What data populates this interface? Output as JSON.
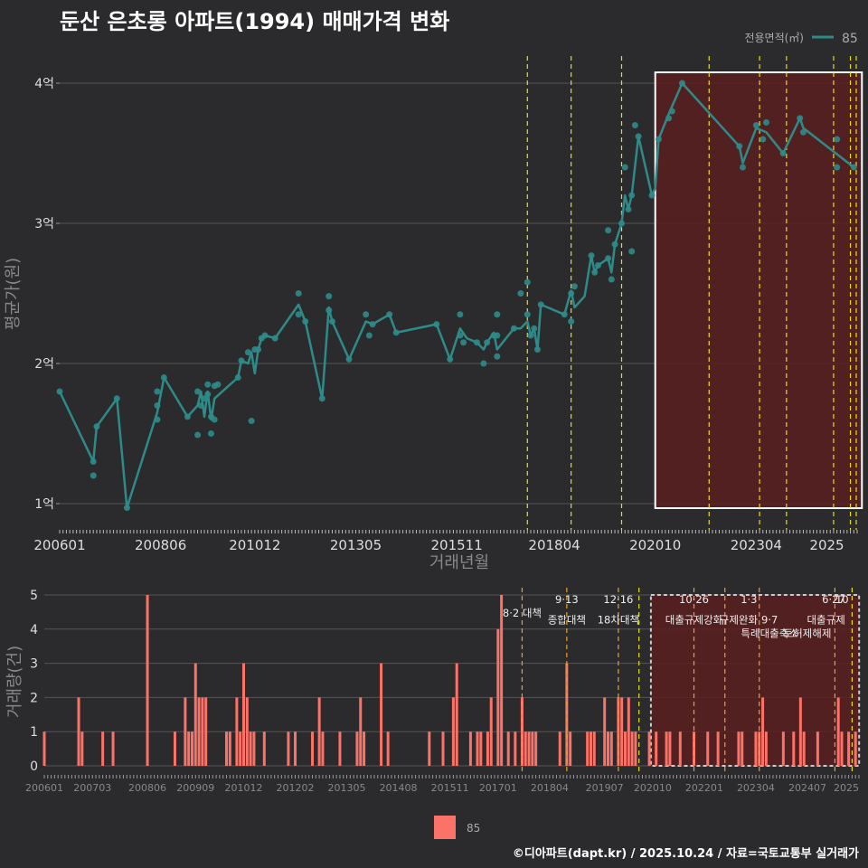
{
  "title": "둔산 은초롱 아파트(1994) 매매가격 변화",
  "footer": "©디아파트(dapt.kr) / 2025.10.24 / 자료=국토교통부 실거래가",
  "colors": {
    "background": "#2b2b2d",
    "line": "#2e8b89",
    "bar": "#fa7268",
    "policy": "#e8e00a",
    "policy_dark": "#e6a12c",
    "highlight_fill": "#5a1e20",
    "grid": "#555555"
  },
  "chart_data": [
    {
      "type": "line",
      "title": "",
      "xlabel": "거래년월",
      "ylabel": "평균가(원)",
      "ylim": [
        0.85,
        4.25
      ],
      "yticks": [
        {
          "v": 1,
          "label": "1억"
        },
        {
          "v": 2,
          "label": "2억"
        },
        {
          "v": 3,
          "label": "3억"
        },
        {
          "v": 4,
          "label": "4억"
        }
      ],
      "xticks": [
        {
          "m": 0,
          "label": "200601"
        },
        {
          "m": 30,
          "label": "200806"
        },
        {
          "m": 58,
          "label": "201012"
        },
        {
          "m": 88,
          "label": "201305"
        },
        {
          "m": 118,
          "label": "201511"
        },
        {
          "m": 147,
          "label": "201804"
        },
        {
          "m": 177,
          "label": "202010"
        },
        {
          "m": 207,
          "label": "202304"
        },
        {
          "m": 228,
          "label": "2025"
        }
      ],
      "xmax": 237,
      "legend": {
        "title": "전용면적(㎡)",
        "entries": [
          "85"
        ],
        "position": "top-right"
      },
      "highlight_range": [
        177,
        236
      ],
      "policy_months": [
        139,
        152,
        167,
        193,
        208,
        216,
        230,
        235,
        239
      ],
      "series": [
        {
          "name": "85",
          "points": [
            [
              0,
              1.8
            ],
            [
              10,
              1.3
            ],
            [
              11,
              1.55
            ],
            [
              17,
              1.75
            ],
            [
              20,
              0.97
            ],
            [
              29,
              1.65
            ],
            [
              31,
              1.9
            ],
            [
              38,
              1.62
            ],
            [
              41,
              1.7
            ],
            [
              42,
              1.8
            ],
            [
              43,
              1.62
            ],
            [
              44,
              1.8
            ],
            [
              45,
              1.6
            ],
            [
              46,
              1.75
            ],
            [
              53,
              1.9
            ],
            [
              54,
              2.02
            ],
            [
              56,
              2.0
            ],
            [
              57,
              2.08
            ],
            [
              58,
              1.93
            ],
            [
              59,
              2.1
            ],
            [
              60,
              2.18
            ],
            [
              61,
              2.2
            ],
            [
              64,
              2.18
            ],
            [
              71,
              2.42
            ],
            [
              73,
              2.3
            ],
            [
              78,
              1.75
            ],
            [
              80,
              2.4
            ],
            [
              81,
              2.3
            ],
            [
              86,
              2.03
            ],
            [
              91,
              2.3
            ],
            [
              93,
              2.28
            ],
            [
              98,
              2.35
            ],
            [
              100,
              2.22
            ],
            [
              112,
              2.28
            ],
            [
              116,
              2.03
            ],
            [
              119,
              2.25
            ],
            [
              121,
              2.18
            ],
            [
              124,
              2.15
            ],
            [
              126,
              2.1
            ],
            [
              127,
              2.15
            ],
            [
              129,
              2.22
            ],
            [
              130,
              2.1
            ],
            [
              135,
              2.25
            ],
            [
              137,
              2.25
            ],
            [
              139,
              2.3
            ],
            [
              140,
              2.2
            ],
            [
              141,
              2.25
            ],
            [
              142,
              2.1
            ],
            [
              143,
              2.42
            ],
            [
              150,
              2.35
            ],
            [
              152,
              2.52
            ],
            [
              153,
              2.4
            ],
            [
              156,
              2.48
            ],
            [
              158,
              2.77
            ],
            [
              159,
              2.65
            ],
            [
              160,
              2.7
            ],
            [
              163,
              2.75
            ],
            [
              164,
              2.65
            ],
            [
              165,
              2.85
            ],
            [
              167,
              3.0
            ],
            [
              168,
              3.2
            ],
            [
              169,
              3.1
            ],
            [
              170,
              3.2
            ],
            [
              172,
              3.62
            ],
            [
              176,
              3.2
            ],
            [
              177,
              3.25
            ],
            [
              178,
              3.6
            ],
            [
              181,
              3.78
            ],
            [
              185,
              4.0
            ],
            [
              202,
              3.55
            ],
            [
              203,
              3.43
            ],
            [
              207,
              3.68
            ],
            [
              210,
              3.65
            ],
            [
              215,
              3.5
            ],
            [
              220,
              3.75
            ],
            [
              221,
              3.68
            ],
            [
              236,
              3.4
            ]
          ]
        }
      ],
      "scatter": [
        [
          0,
          1.8
        ],
        [
          10,
          1.3
        ],
        [
          10,
          1.2
        ],
        [
          11,
          1.55
        ],
        [
          17,
          1.75
        ],
        [
          20,
          0.97
        ],
        [
          29,
          1.6
        ],
        [
          29,
          1.7
        ],
        [
          29,
          1.8
        ],
        [
          31,
          1.9
        ],
        [
          38,
          1.62
        ],
        [
          41,
          1.8
        ],
        [
          41,
          1.49
        ],
        [
          42,
          1.7
        ],
        [
          43,
          1.75
        ],
        [
          44,
          1.85
        ],
        [
          44,
          1.78
        ],
        [
          45,
          1.5
        ],
        [
          45,
          1.62
        ],
        [
          46,
          1.84
        ],
        [
          46,
          1.6
        ],
        [
          47,
          1.85
        ],
        [
          53,
          1.9
        ],
        [
          54,
          2.02
        ],
        [
          56,
          2.08
        ],
        [
          57,
          1.59
        ],
        [
          58,
          2.1
        ],
        [
          59,
          2.1
        ],
        [
          60,
          2.18
        ],
        [
          61,
          2.2
        ],
        [
          64,
          2.18
        ],
        [
          71,
          2.5
        ],
        [
          71,
          2.35
        ],
        [
          73,
          2.3
        ],
        [
          78,
          1.75
        ],
        [
          80,
          2.48
        ],
        [
          80,
          2.38
        ],
        [
          81,
          2.3
        ],
        [
          86,
          2.03
        ],
        [
          91,
          2.35
        ],
        [
          92,
          2.2
        ],
        [
          93,
          2.28
        ],
        [
          98,
          2.35
        ],
        [
          100,
          2.22
        ],
        [
          112,
          2.28
        ],
        [
          116,
          2.03
        ],
        [
          119,
          2.35
        ],
        [
          119,
          2.2
        ],
        [
          120,
          2.15
        ],
        [
          124,
          2.15
        ],
        [
          126,
          2.0
        ],
        [
          127,
          2.15
        ],
        [
          129,
          2.2
        ],
        [
          130,
          2.2
        ],
        [
          130,
          2.05
        ],
        [
          130,
          2.35
        ],
        [
          135,
          2.25
        ],
        [
          137,
          2.5
        ],
        [
          139,
          2.58
        ],
        [
          139,
          2.35
        ],
        [
          140,
          2.2
        ],
        [
          141,
          2.25
        ],
        [
          142,
          2.1
        ],
        [
          143,
          2.42
        ],
        [
          150,
          2.35
        ],
        [
          152,
          2.5
        ],
        [
          152,
          2.3
        ],
        [
          153,
          2.55
        ],
        [
          158,
          2.77
        ],
        [
          159,
          2.65
        ],
        [
          160,
          2.7
        ],
        [
          163,
          2.95
        ],
        [
          163,
          2.75
        ],
        [
          164,
          2.6
        ],
        [
          165,
          2.85
        ],
        [
          167,
          3.0
        ],
        [
          168,
          3.4
        ],
        [
          169,
          3.1
        ],
        [
          170,
          2.8
        ],
        [
          170,
          3.2
        ],
        [
          171,
          3.7
        ],
        [
          172,
          3.62
        ],
        [
          176,
          3.2
        ],
        [
          178,
          3.6
        ],
        [
          181,
          3.75
        ],
        [
          182,
          3.8
        ],
        [
          185,
          4.0
        ],
        [
          202,
          3.55
        ],
        [
          203,
          3.4
        ],
        [
          207,
          3.7
        ],
        [
          209,
          3.6
        ],
        [
          210,
          3.72
        ],
        [
          215,
          3.5
        ],
        [
          220,
          3.75
        ],
        [
          221,
          3.65
        ],
        [
          231,
          3.6
        ],
        [
          231,
          3.4
        ],
        [
          236,
          3.4
        ]
      ]
    },
    {
      "type": "bar",
      "xlabel": "",
      "ylabel": "거래량(건)",
      "ylim": [
        0,
        5
      ],
      "yticks": [
        0,
        1,
        2,
        3,
        4,
        5
      ],
      "xticks": [
        {
          "m": 0,
          "label": "200601"
        },
        {
          "m": 14,
          "label": "200703"
        },
        {
          "m": 30,
          "label": "200806"
        },
        {
          "m": 44,
          "label": "200909"
        },
        {
          "m": 58,
          "label": "201012"
        },
        {
          "m": 73,
          "label": "201202"
        },
        {
          "m": 88,
          "label": "201305"
        },
        {
          "m": 103,
          "label": "201408"
        },
        {
          "m": 118,
          "label": "201511"
        },
        {
          "m": 132,
          "label": "201701"
        },
        {
          "m": 147,
          "label": "201804"
        },
        {
          "m": 163,
          "label": "201907"
        },
        {
          "m": 177,
          "label": "202010"
        },
        {
          "m": 192,
          "label": "202201"
        },
        {
          "m": 207,
          "label": "202304"
        },
        {
          "m": 222,
          "label": "202407"
        },
        {
          "m": 234,
          "label": "2025"
        }
      ],
      "xmax": 237,
      "legend": {
        "entries": [
          "85"
        ],
        "position": "bottom"
      },
      "highlight_range": [
        177,
        236
      ],
      "policy_months": [
        139,
        152,
        167,
        173,
        189,
        198,
        208,
        230,
        235
      ],
      "annotations": [
        {
          "m": 139,
          "level": 4.5,
          "text": "8·2 대책"
        },
        {
          "m": 152,
          "level": 4.9,
          "text": "9·13"
        },
        {
          "m": 152,
          "level": 4.3,
          "text": "종합대책"
        },
        {
          "m": 167,
          "level": 4.9,
          "text": "12·16"
        },
        {
          "m": 167,
          "level": 4.3,
          "text": "18차대책"
        },
        {
          "m": 189,
          "level": 4.9,
          "text": "10·26"
        },
        {
          "m": 189,
          "level": 4.3,
          "text": "대출규제강화"
        },
        {
          "m": 205,
          "level": 4.9,
          "text": "1·3"
        },
        {
          "m": 202,
          "level": 4.3,
          "text": "규제완화"
        },
        {
          "m": 211,
          "level": 4.3,
          "text": "9·7"
        },
        {
          "m": 211,
          "level": 3.9,
          "text": "특례대출축소"
        },
        {
          "m": 222,
          "level": 3.9,
          "text": "토허제해제"
        },
        {
          "m": 233,
          "level": 4.9,
          "text": "6·27"
        },
        {
          "m": 234,
          "level": 4.9,
          "text": "10"
        },
        {
          "m": 233,
          "level": 4.3,
          "text": "대출규제"
        }
      ],
      "bars": [
        [
          0,
          1
        ],
        [
          10,
          2
        ],
        [
          11,
          1
        ],
        [
          17,
          1
        ],
        [
          20,
          1
        ],
        [
          30,
          5
        ],
        [
          38,
          1
        ],
        [
          41,
          2
        ],
        [
          42,
          1
        ],
        [
          43,
          1
        ],
        [
          44,
          3
        ],
        [
          45,
          2
        ],
        [
          46,
          2
        ],
        [
          47,
          2
        ],
        [
          53,
          1
        ],
        [
          54,
          1
        ],
        [
          56,
          2
        ],
        [
          57,
          1
        ],
        [
          58,
          3
        ],
        [
          59,
          2
        ],
        [
          60,
          1
        ],
        [
          61,
          1
        ],
        [
          64,
          1
        ],
        [
          71,
          1
        ],
        [
          73,
          1
        ],
        [
          78,
          1
        ],
        [
          80,
          2
        ],
        [
          81,
          1
        ],
        [
          86,
          1
        ],
        [
          91,
          1
        ],
        [
          92,
          2
        ],
        [
          93,
          1
        ],
        [
          98,
          3
        ],
        [
          100,
          1
        ],
        [
          112,
          1
        ],
        [
          116,
          1
        ],
        [
          119,
          2
        ],
        [
          120,
          3
        ],
        [
          124,
          1
        ],
        [
          126,
          1
        ],
        [
          127,
          1
        ],
        [
          129,
          1
        ],
        [
          130,
          2
        ],
        [
          132,
          4
        ],
        [
          133,
          5
        ],
        [
          135,
          1
        ],
        [
          137,
          1
        ],
        [
          139,
          2
        ],
        [
          140,
          1
        ],
        [
          141,
          1
        ],
        [
          142,
          1
        ],
        [
          143,
          1
        ],
        [
          150,
          1
        ],
        [
          152,
          3
        ],
        [
          153,
          1
        ],
        [
          158,
          1
        ],
        [
          159,
          1
        ],
        [
          160,
          1
        ],
        [
          163,
          2
        ],
        [
          164,
          1
        ],
        [
          165,
          1
        ],
        [
          167,
          2
        ],
        [
          168,
          2
        ],
        [
          169,
          1
        ],
        [
          170,
          2
        ],
        [
          171,
          1
        ],
        [
          172,
          1
        ],
        [
          176,
          1
        ],
        [
          178,
          1
        ],
        [
          181,
          1
        ],
        [
          182,
          1
        ],
        [
          185,
          1
        ],
        [
          189,
          1
        ],
        [
          193,
          1
        ],
        [
          196,
          1
        ],
        [
          202,
          1
        ],
        [
          203,
          1
        ],
        [
          207,
          1
        ],
        [
          208,
          1
        ],
        [
          209,
          2
        ],
        [
          210,
          1
        ],
        [
          215,
          1
        ],
        [
          218,
          1
        ],
        [
          220,
          2
        ],
        [
          221,
          1
        ],
        [
          225,
          1
        ],
        [
          231,
          2
        ],
        [
          232,
          1
        ],
        [
          234,
          1
        ],
        [
          236,
          1
        ]
      ]
    }
  ]
}
